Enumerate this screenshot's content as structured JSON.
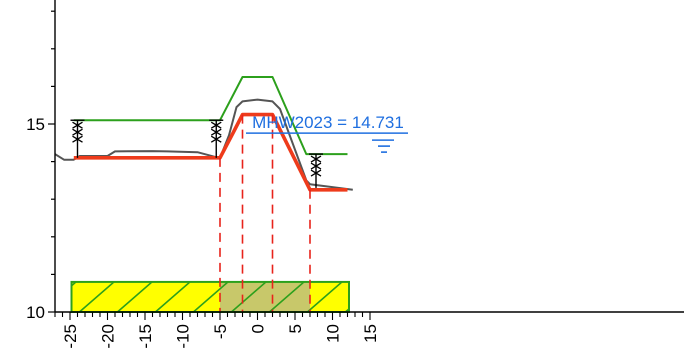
{
  "chart_data": {
    "type": "line",
    "title": "",
    "xlabel": "",
    "ylabel": "",
    "xlim": [
      -27,
      15
    ],
    "ylim": [
      10,
      18
    ],
    "x_ticks": [
      -25,
      -20,
      -15,
      -10,
      -5,
      0,
      5,
      10,
      15
    ],
    "y_ticks": [
      10,
      15
    ],
    "series": [
      {
        "role": "design",
        "color": "#2ca01c",
        "points": [
          [
            -24.5,
            15.1
          ],
          [
            -5,
            15.1
          ],
          [
            -2,
            16.25
          ],
          [
            2,
            16.25
          ],
          [
            6.5,
            14.2
          ],
          [
            12,
            14.2
          ]
        ]
      },
      {
        "role": "terrain",
        "color": "#555555",
        "points": [
          [
            -27,
            14.2
          ],
          [
            -25.8,
            14.05
          ],
          [
            -24.5,
            14.05
          ],
          [
            -23.7,
            14.15
          ],
          [
            -20,
            14.15
          ],
          [
            -19,
            14.27
          ],
          [
            -14,
            14.28
          ],
          [
            -12,
            14.27
          ],
          [
            -8,
            14.25
          ],
          [
            -5.2,
            14.1
          ],
          [
            -4.9,
            14.15
          ],
          [
            -3.8,
            14.7
          ],
          [
            -2.8,
            15.45
          ],
          [
            -2,
            15.6
          ],
          [
            0,
            15.65
          ],
          [
            2,
            15.6
          ],
          [
            3,
            15.4
          ],
          [
            6.5,
            13.5
          ],
          [
            7,
            13.4
          ],
          [
            12.7,
            13.25
          ]
        ]
      },
      {
        "role": "main",
        "color": "#ee3b1b",
        "points": [
          [
            -24.5,
            14.1
          ],
          [
            -5,
            14.1
          ],
          [
            -3.3,
            14.75
          ],
          [
            -2,
            15.25
          ],
          [
            2,
            15.25
          ],
          [
            7,
            13.25
          ],
          [
            12,
            13.25
          ]
        ]
      }
    ],
    "annotation": {
      "text": "MHW2023 = 14.731",
      "x": 9.4,
      "y": 14.9,
      "color": "#1f6fe0"
    },
    "water_level_y": 14.731,
    "dashed_verticals_x": [
      -5,
      -2,
      2,
      7
    ],
    "dimension_markers": [
      {
        "x": -24,
        "y_top": 15.1,
        "y_bottom": 14.1
      },
      {
        "x": -5.5,
        "y_top": 15.1,
        "y_bottom": 14.1
      },
      {
        "x": 7.8,
        "y_top": 14.2,
        "y_bottom": 13.3
      }
    ],
    "hatch_band": {
      "x_start": -24.8,
      "x_end": 12.2,
      "y_bottom": 10.0,
      "y_top": 10.8,
      "fill": "#ffff00",
      "highlight_x": [
        -5,
        7
      ],
      "highlight_fill": "#c8c86a",
      "stroke": "#2ca01c"
    }
  }
}
